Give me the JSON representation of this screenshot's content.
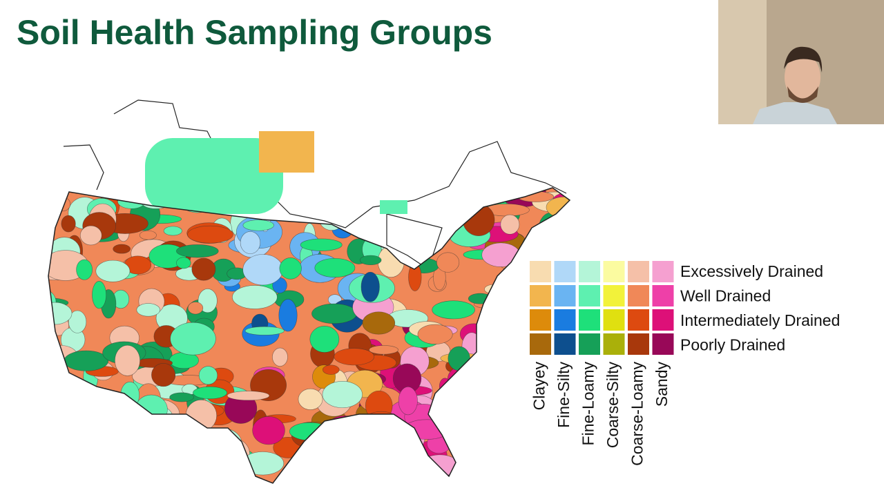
{
  "title": "Soil Health Sampling Groups",
  "legend": {
    "rows": [
      "Excessively Drained",
      "Well Drained",
      "Intermediately Drained",
      "Poorly Drained"
    ],
    "columns": [
      "Clayey",
      "Fine-Silty",
      "Fine-Loamy",
      "Coarse-Silty",
      "Coarse-Loamy",
      "Sandy"
    ],
    "colors": [
      [
        "#f8dcb0",
        "#f2b54e",
        "#dd8b0b",
        "#a8690c"
      ],
      [
        "#b0d8f8",
        "#6ab4f2",
        "#1a7ce0",
        "#0d4f8e"
      ],
      [
        "#b4f5d8",
        "#5ef0b0",
        "#1ee07a",
        "#16a058"
      ],
      [
        "#fbfba0",
        "#f2f23a",
        "#e0e010",
        "#aab00a"
      ],
      [
        "#f5c0a8",
        "#f08858",
        "#dd4a10",
        "#a8380c"
      ],
      [
        "#f5a0d0",
        "#ee40a8",
        "#dd1078",
        "#980858"
      ]
    ]
  }
}
